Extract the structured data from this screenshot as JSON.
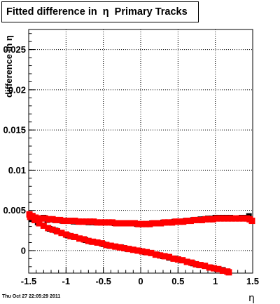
{
  "title": "Fitted difference in  η  Primary Tracks",
  "footer": "Thu Oct 27 22:05:29 2011",
  "chart_data": {
    "type": "scatter",
    "title": "Fitted difference in  η  Primary Tracks",
    "xlabel": "η",
    "ylabel": "difference in η",
    "xlim": [
      -1.5,
      1.5
    ],
    "ylim": [
      -0.0028,
      0.0275
    ],
    "x_ticks": [
      -1.5,
      -1,
      -0.5,
      0,
      0.5,
      1,
      1.5
    ],
    "x_tick_labels": [
      "-1.5",
      "-1",
      "-0.5",
      "0",
      "0.5",
      "1",
      "1.5"
    ],
    "y_ticks": [
      0,
      0.005,
      0.01,
      0.015,
      0.02,
      0.025
    ],
    "y_tick_labels": [
      "0",
      "0.005",
      "0.01",
      "0.015",
      "0.02",
      "0.025"
    ],
    "grid": true,
    "colors": {
      "black_series": "#000000",
      "red_series": "#ff0000"
    },
    "series": [
      {
        "color": "black",
        "marker": "square",
        "points": [
          [
            -1.48,
            0.0042
          ],
          [
            -1.44,
            0.004
          ],
          [
            -1.4,
            0.0039
          ],
          [
            -1.35,
            0.004
          ],
          [
            -1.3,
            0.0041
          ],
          [
            -1.25,
            0.0038
          ],
          [
            -1.2,
            0.0039
          ],
          [
            -1.15,
            0.0038
          ],
          [
            -1.1,
            0.0038
          ],
          [
            -1.05,
            0.0037
          ],
          [
            -1.0,
            0.0037
          ],
          [
            -0.95,
            0.0037
          ],
          [
            -0.9,
            0.0036
          ],
          [
            -0.85,
            0.0036
          ],
          [
            -0.8,
            0.0036
          ],
          [
            -0.75,
            0.0036
          ],
          [
            -0.7,
            0.0035
          ],
          [
            -0.65,
            0.0035
          ],
          [
            -0.6,
            0.0035
          ],
          [
            -0.55,
            0.0035
          ],
          [
            -0.5,
            0.0035
          ],
          [
            -0.45,
            0.0035
          ],
          [
            -0.4,
            0.0035
          ],
          [
            -0.35,
            0.0034
          ],
          [
            -0.3,
            0.0034
          ],
          [
            -0.25,
            0.0034
          ],
          [
            -0.2,
            0.0034
          ],
          [
            -0.15,
            0.0034
          ],
          [
            -0.1,
            0.0034
          ],
          [
            -0.05,
            0.0033
          ],
          [
            0.0,
            0.0033
          ],
          [
            0.05,
            0.0033
          ],
          [
            0.1,
            0.0033
          ],
          [
            0.15,
            0.0034
          ],
          [
            0.2,
            0.0034
          ],
          [
            0.25,
            0.0034
          ],
          [
            0.3,
            0.0035
          ],
          [
            0.35,
            0.0035
          ],
          [
            0.4,
            0.0035
          ],
          [
            0.45,
            0.0036
          ],
          [
            0.5,
            0.0036
          ],
          [
            0.55,
            0.0036
          ],
          [
            0.6,
            0.0037
          ],
          [
            0.65,
            0.0037
          ],
          [
            0.7,
            0.0038
          ],
          [
            0.75,
            0.0038
          ],
          [
            0.8,
            0.0039
          ],
          [
            0.85,
            0.0039
          ],
          [
            0.9,
            0.004
          ],
          [
            0.95,
            0.004
          ],
          [
            1.0,
            0.0041
          ],
          [
            1.05,
            0.0041
          ],
          [
            1.1,
            0.0041
          ],
          [
            1.15,
            0.0041
          ],
          [
            1.2,
            0.0041
          ],
          [
            1.25,
            0.004
          ],
          [
            1.3,
            0.004
          ],
          [
            1.35,
            0.0041
          ],
          [
            1.4,
            0.0041
          ],
          [
            1.45,
            0.0043
          ],
          [
            -1.46,
            0.0039
          ],
          [
            -1.38,
            0.0035
          ],
          [
            -1.3,
            0.0031
          ],
          [
            -1.22,
            0.0027
          ],
          [
            -1.14,
            0.0025
          ],
          [
            -1.06,
            0.0022
          ],
          [
            -0.98,
            0.0019
          ],
          [
            -0.9,
            0.0017
          ],
          [
            -0.82,
            0.0015
          ],
          [
            -0.74,
            0.0013
          ],
          [
            -0.66,
            0.0011
          ],
          [
            -0.58,
            0.001
          ],
          [
            -0.5,
            0.0008
          ],
          [
            -0.42,
            0.0006
          ],
          [
            -0.34,
            0.0005
          ],
          [
            -0.26,
            0.0004
          ],
          [
            -0.18,
            0.0002
          ],
          [
            -0.1,
            0.0001
          ],
          [
            -0.02,
            0.0
          ],
          [
            0.06,
            -0.0002
          ],
          [
            0.14,
            -0.0003
          ],
          [
            0.22,
            -0.0005
          ],
          [
            0.3,
            -0.0007
          ],
          [
            0.38,
            -0.0009
          ],
          [
            0.46,
            -0.001
          ],
          [
            0.54,
            -0.0012
          ],
          [
            0.62,
            -0.0014
          ],
          [
            0.7,
            -0.0016
          ],
          [
            0.78,
            -0.0018
          ],
          [
            0.86,
            -0.0019
          ],
          [
            0.94,
            -0.0021
          ],
          [
            1.02,
            -0.0023
          ],
          [
            1.1,
            -0.0024
          ],
          [
            1.16,
            -0.0026
          ]
        ]
      },
      {
        "color": "red",
        "marker": "square",
        "points": [
          [
            -1.49,
            0.0045
          ],
          [
            -1.45,
            0.0043
          ],
          [
            -1.41,
            0.0041
          ],
          [
            -1.37,
            0.004
          ],
          [
            -1.33,
            0.004
          ],
          [
            -1.28,
            0.004
          ],
          [
            -1.23,
            0.0039
          ],
          [
            -1.18,
            0.0039
          ],
          [
            -1.13,
            0.0038
          ],
          [
            -1.08,
            0.0038
          ],
          [
            -1.03,
            0.0037
          ],
          [
            -0.98,
            0.0037
          ],
          [
            -0.93,
            0.0037
          ],
          [
            -0.88,
            0.0037
          ],
          [
            -0.83,
            0.0036
          ],
          [
            -0.78,
            0.0036
          ],
          [
            -0.73,
            0.0036
          ],
          [
            -0.68,
            0.0036
          ],
          [
            -0.63,
            0.0036
          ],
          [
            -0.58,
            0.0035
          ],
          [
            -0.53,
            0.0035
          ],
          [
            -0.48,
            0.0035
          ],
          [
            -0.43,
            0.0035
          ],
          [
            -0.38,
            0.0035
          ],
          [
            -0.33,
            0.0034
          ],
          [
            -0.28,
            0.0034
          ],
          [
            -0.23,
            0.0034
          ],
          [
            -0.18,
            0.0034
          ],
          [
            -0.13,
            0.0034
          ],
          [
            -0.08,
            0.0034
          ],
          [
            -0.03,
            0.0033
          ],
          [
            0.02,
            0.0033
          ],
          [
            0.07,
            0.0033
          ],
          [
            0.12,
            0.0033
          ],
          [
            0.17,
            0.0034
          ],
          [
            0.22,
            0.0034
          ],
          [
            0.27,
            0.0034
          ],
          [
            0.32,
            0.0035
          ],
          [
            0.37,
            0.0035
          ],
          [
            0.42,
            0.0035
          ],
          [
            0.47,
            0.0036
          ],
          [
            0.52,
            0.0036
          ],
          [
            0.57,
            0.0036
          ],
          [
            0.62,
            0.0037
          ],
          [
            0.67,
            0.0037
          ],
          [
            0.72,
            0.0038
          ],
          [
            0.77,
            0.0038
          ],
          [
            0.82,
            0.0038
          ],
          [
            0.87,
            0.0039
          ],
          [
            0.92,
            0.0039
          ],
          [
            0.97,
            0.0039
          ],
          [
            1.02,
            0.004
          ],
          [
            1.07,
            0.004
          ],
          [
            1.12,
            0.004
          ],
          [
            1.17,
            0.004
          ],
          [
            1.22,
            0.004
          ],
          [
            1.27,
            0.004
          ],
          [
            1.32,
            0.004
          ],
          [
            1.37,
            0.004
          ],
          [
            1.42,
            0.004
          ],
          [
            1.46,
            0.0039
          ],
          [
            1.49,
            0.0037
          ],
          [
            -1.48,
            0.0042
          ],
          [
            -1.42,
            0.0038
          ],
          [
            -1.36,
            0.0034
          ],
          [
            -1.3,
            0.0031
          ],
          [
            -1.24,
            0.0028
          ],
          [
            -1.18,
            0.0026
          ],
          [
            -1.12,
            0.0024
          ],
          [
            -1.06,
            0.0022
          ],
          [
            -1.0,
            0.002
          ],
          [
            -0.94,
            0.0018
          ],
          [
            -0.88,
            0.0017
          ],
          [
            -0.82,
            0.0015
          ],
          [
            -0.76,
            0.0014
          ],
          [
            -0.7,
            0.0012
          ],
          [
            -0.64,
            0.0011
          ],
          [
            -0.58,
            0.001
          ],
          [
            -0.52,
            0.0009
          ],
          [
            -0.46,
            0.0007
          ],
          [
            -0.4,
            0.0006
          ],
          [
            -0.34,
            0.0005
          ],
          [
            -0.28,
            0.0004
          ],
          [
            -0.22,
            0.0003
          ],
          [
            -0.16,
            0.0002
          ],
          [
            -0.1,
            0.0001
          ],
          [
            -0.04,
            0.0
          ],
          [
            0.02,
            -0.0001
          ],
          [
            0.08,
            -0.0002
          ],
          [
            0.14,
            -0.0003
          ],
          [
            0.2,
            -0.0005
          ],
          [
            0.26,
            -0.0006
          ],
          [
            0.32,
            -0.0007
          ],
          [
            0.38,
            -0.0008
          ],
          [
            0.44,
            -0.001
          ],
          [
            0.5,
            -0.0011
          ],
          [
            0.56,
            -0.0012
          ],
          [
            0.62,
            -0.0014
          ],
          [
            0.68,
            -0.0015
          ],
          [
            0.74,
            -0.0017
          ],
          [
            0.8,
            -0.0018
          ],
          [
            0.86,
            -0.0019
          ],
          [
            0.92,
            -0.0021
          ],
          [
            0.98,
            -0.0022
          ],
          [
            1.04,
            -0.0023
          ],
          [
            1.1,
            -0.0025
          ],
          [
            1.16,
            -0.0026
          ],
          [
            1.18,
            -0.0027
          ]
        ]
      }
    ]
  }
}
